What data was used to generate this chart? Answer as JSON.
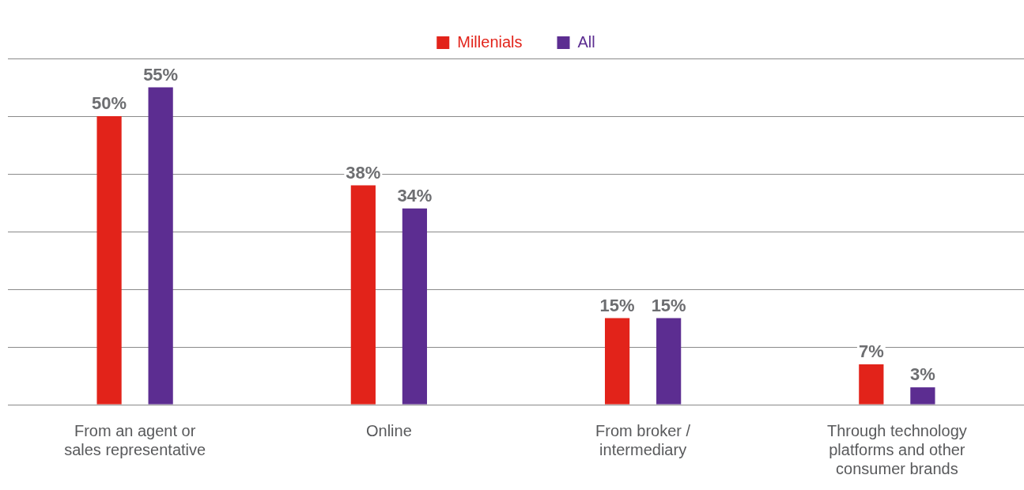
{
  "chart_data": {
    "type": "bar",
    "categories": [
      "From an agent or sales representative",
      "Online",
      "From broker / intermediary",
      "Through technology platforms and other consumer brands"
    ],
    "series": [
      {
        "name": "Millenials",
        "color": "#e2231a",
        "values": [
          50,
          38,
          15,
          7
        ],
        "value_labels": [
          "50%",
          "38%",
          "15%",
          "7%"
        ]
      },
      {
        "name": "All",
        "color": "#5c2d91",
        "values": [
          55,
          34,
          15,
          3
        ],
        "value_labels": [
          "55%",
          "34%",
          "15%",
          "3%"
        ]
      }
    ],
    "tick_labels": "x",
    "grid": "y",
    "legend": "top"
  }
}
